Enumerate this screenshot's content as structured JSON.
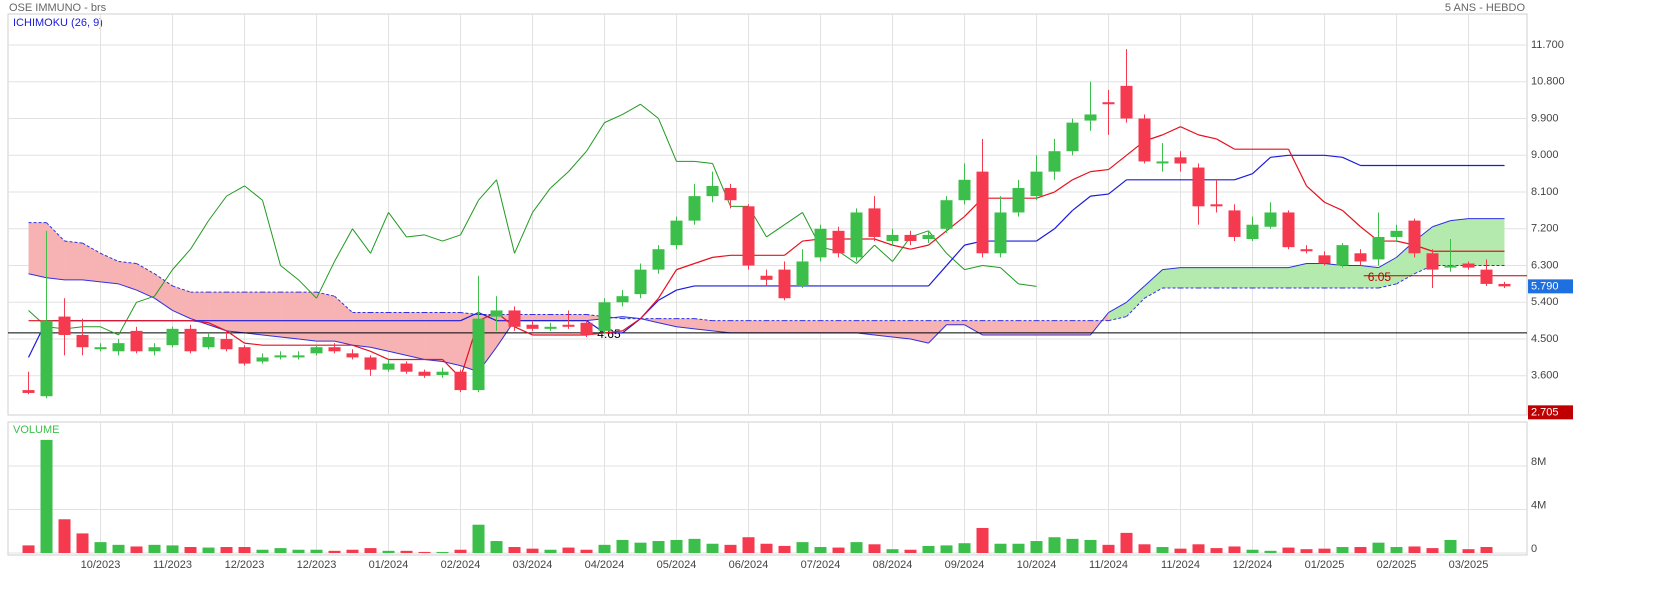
{
  "chart_data": {
    "type": "candlestick",
    "title": "OSE IMMUNO - brs",
    "subtitle": "5 ANS - HEBDO",
    "indicator_label": "ICHIMOKU (26, 9)",
    "displacement": 26,
    "up_color": "#3cbf4a",
    "down_color": "#f5394f",
    "xlim": [
      -1.14,
      83.25
    ],
    "xticks": [
      {
        "value": 4,
        "label": "10/2023"
      },
      {
        "value": 8,
        "label": "11/2023"
      },
      {
        "value": 12,
        "label": "12/2023"
      },
      {
        "value": 16,
        "label": "12/2023"
      },
      {
        "value": 20,
        "label": "01/2024"
      },
      {
        "value": 24,
        "label": "02/2024"
      },
      {
        "value": 28,
        "label": "03/2024"
      },
      {
        "value": 32,
        "label": "04/2024"
      },
      {
        "value": 36,
        "label": "05/2024"
      },
      {
        "value": 40,
        "label": "06/2024"
      },
      {
        "value": 44,
        "label": "07/2024"
      },
      {
        "value": 48,
        "label": "08/2024"
      },
      {
        "value": 52,
        "label": "09/2024"
      },
      {
        "value": 56,
        "label": "10/2024"
      },
      {
        "value": 60,
        "label": "11/2024"
      },
      {
        "value": 64,
        "label": "11/2024"
      },
      {
        "value": 68,
        "label": "12/2024"
      },
      {
        "value": 72,
        "label": "01/2025"
      },
      {
        "value": 76,
        "label": "02/2025"
      },
      {
        "value": 80,
        "label": "03/2025"
      }
    ],
    "ylim": [
      2.64,
      12.46
    ],
    "yticks": [
      {
        "value": 11.7,
        "label": "11.700"
      },
      {
        "value": 10.8,
        "label": "10.800"
      },
      {
        "value": 9.9,
        "label": "9.900"
      },
      {
        "value": 9.0,
        "label": "9.000"
      },
      {
        "value": 8.1,
        "label": "8.100"
      },
      {
        "value": 7.2,
        "label": "7.200"
      },
      {
        "value": 6.3,
        "label": "6.300"
      },
      {
        "value": 5.4,
        "label": "5.400"
      },
      {
        "value": 4.5,
        "label": "4.500"
      },
      {
        "value": 3.6,
        "label": "3.600"
      }
    ],
    "grid": true,
    "open": [
      3.25,
      3.1,
      5.05,
      4.6,
      4.28,
      4.2,
      4.7,
      4.2,
      4.35,
      4.75,
      4.3,
      4.5,
      4.3,
      3.95,
      4.08,
      4.05,
      4.15,
      4.3,
      4.15,
      4.05,
      3.75,
      3.9,
      3.7,
      3.62,
      3.7,
      3.25,
      5.05,
      5.2,
      4.85,
      4.75,
      4.85,
      4.9,
      4.7,
      5.4,
      5.6,
      6.2,
      6.8,
      7.4,
      8.0,
      8.2,
      7.75,
      6.05,
      6.2,
      5.8,
      6.5,
      7.15,
      6.5,
      7.7,
      6.9,
      7.05,
      6.95,
      7.2,
      7.9,
      8.6,
      6.6,
      7.6,
      8.0,
      8.6,
      9.1,
      9.85,
      10.3,
      10.7,
      9.9,
      8.8,
      8.95,
      8.7,
      7.8,
      7.65,
      6.95,
      7.25,
      7.6,
      6.7,
      6.55,
      6.3,
      6.6,
      6.45,
      7.0,
      7.4,
      6.6,
      6.25,
      6.35,
      6.2,
      5.85
    ],
    "high": [
      3.7,
      7.15,
      5.5,
      5.0,
      4.4,
      4.5,
      4.8,
      4.4,
      4.8,
      4.85,
      4.65,
      4.7,
      4.35,
      4.15,
      4.2,
      4.2,
      4.35,
      4.4,
      4.25,
      4.1,
      4.0,
      3.95,
      3.75,
      3.8,
      3.75,
      6.05,
      5.55,
      5.3,
      4.95,
      4.9,
      5.2,
      4.95,
      5.5,
      5.7,
      6.35,
      6.8,
      7.5,
      8.3,
      8.6,
      8.3,
      7.8,
      6.2,
      6.4,
      6.7,
      7.3,
      7.25,
      7.7,
      8.0,
      7.2,
      7.15,
      7.15,
      8.0,
      8.8,
      9.4,
      8.0,
      8.4,
      9.0,
      9.4,
      9.9,
      10.8,
      10.6,
      11.6,
      10.0,
      9.3,
      9.1,
      8.8,
      8.4,
      7.8,
      7.5,
      7.85,
      7.65,
      6.8,
      6.65,
      6.85,
      6.7,
      7.6,
      7.3,
      7.45,
      6.7,
      6.95,
      6.4,
      6.45,
      5.9
    ],
    "low": [
      3.15,
      3.05,
      4.1,
      4.1,
      4.2,
      4.1,
      4.15,
      4.1,
      4.3,
      4.15,
      4.25,
      4.2,
      3.85,
      3.9,
      4.0,
      4.0,
      4.1,
      4.15,
      4.0,
      3.6,
      3.7,
      3.65,
      3.55,
      3.55,
      3.2,
      3.2,
      4.7,
      4.7,
      4.7,
      4.7,
      4.75,
      4.55,
      4.65,
      5.3,
      5.5,
      6.1,
      6.7,
      7.3,
      7.85,
      7.7,
      6.2,
      5.8,
      5.45,
      5.75,
      6.4,
      6.5,
      6.4,
      6.9,
      6.8,
      6.8,
      6.85,
      7.1,
      7.8,
      6.5,
      6.5,
      7.5,
      7.9,
      8.4,
      9.0,
      9.6,
      9.5,
      9.8,
      8.8,
      8.6,
      8.6,
      7.3,
      7.6,
      6.9,
      6.9,
      7.2,
      6.7,
      6.6,
      6.3,
      6.25,
      6.3,
      6.3,
      6.9,
      6.5,
      5.75,
      6.15,
      6.2,
      5.8,
      5.75
    ],
    "close": [
      3.18,
      4.95,
      4.6,
      4.3,
      4.3,
      4.4,
      4.2,
      4.3,
      4.75,
      4.2,
      4.55,
      4.25,
      3.9,
      4.05,
      4.1,
      4.1,
      4.3,
      4.2,
      4.05,
      3.75,
      3.9,
      3.7,
      3.6,
      3.7,
      3.25,
      5.0,
      5.2,
      4.8,
      4.75,
      4.8,
      4.8,
      4.6,
      5.4,
      5.55,
      6.2,
      6.7,
      7.4,
      8.0,
      8.25,
      7.9,
      6.3,
      5.95,
      5.5,
      6.4,
      7.2,
      6.6,
      7.6,
      7.0,
      7.05,
      6.9,
      7.05,
      7.9,
      8.4,
      6.6,
      7.6,
      8.2,
      8.6,
      9.1,
      9.8,
      10.0,
      10.25,
      9.9,
      8.85,
      8.85,
      8.8,
      7.75,
      7.75,
      7.0,
      7.3,
      7.6,
      6.75,
      6.65,
      6.35,
      6.8,
      6.4,
      7.0,
      7.15,
      6.6,
      6.2,
      6.3,
      6.25,
      5.85,
      5.79
    ],
    "tenkan": {
      "color": "#e8101e",
      "values": [
        4.95,
        4.95,
        4.95,
        4.95,
        4.95,
        4.95,
        4.95,
        4.95,
        4.95,
        4.95,
        4.9,
        4.7,
        4.4,
        4.35,
        4.35,
        4.35,
        4.35,
        4.35,
        4.35,
        4.2,
        4.0,
        4.0,
        4.0,
        4.0,
        3.55,
        4.95,
        5.15,
        4.8,
        4.6,
        4.6,
        4.6,
        4.6,
        4.65,
        4.7,
        5.0,
        5.5,
        6.2,
        6.35,
        6.5,
        6.55,
        6.55,
        6.55,
        6.55,
        6.9,
        6.95,
        6.95,
        6.95,
        6.95,
        6.8,
        6.7,
        6.8,
        7.15,
        7.5,
        7.95,
        7.95,
        7.95,
        7.95,
        8.1,
        8.4,
        8.6,
        8.65,
        9.0,
        9.35,
        9.5,
        9.7,
        9.5,
        9.4,
        9.15,
        9.15,
        9.15,
        9.15,
        8.25,
        7.85,
        7.65,
        7.25,
        6.9,
        6.9,
        6.8,
        6.65,
        6.65,
        6.65,
        6.65,
        6.65
      ]
    },
    "kijun": {
      "color": "#1a1adc",
      "values": [
        4.05,
        4.95,
        4.95,
        4.95,
        4.95,
        4.95,
        4.95,
        4.95,
        4.95,
        4.95,
        4.95,
        4.95,
        4.95,
        4.95,
        4.95,
        4.95,
        4.95,
        4.95,
        4.95,
        4.95,
        4.95,
        4.95,
        4.95,
        4.95,
        4.95,
        5.15,
        4.95,
        4.95,
        4.95,
        4.95,
        4.95,
        4.95,
        4.65,
        4.65,
        5.0,
        5.45,
        5.7,
        5.8,
        5.8,
        5.8,
        5.8,
        5.8,
        5.8,
        5.8,
        5.8,
        5.8,
        5.8,
        5.8,
        5.8,
        5.8,
        5.8,
        6.3,
        6.8,
        6.9,
        6.9,
        6.9,
        6.9,
        7.2,
        7.65,
        8.0,
        8.05,
        8.4,
        8.4,
        8.4,
        8.4,
        8.4,
        8.4,
        8.4,
        8.55,
        8.95,
        9.0,
        9.0,
        9.0,
        8.95,
        8.75,
        8.75,
        8.75,
        8.75,
        8.75,
        8.75,
        8.75,
        8.75,
        8.75
      ]
    },
    "chikou": {
      "color": "#1f9a1f"
    },
    "span_a": {
      "color": "#3030e0",
      "values": [
        6.1,
        6.0,
        5.95,
        5.95,
        5.9,
        5.85,
        5.7,
        5.5,
        5.2,
        5.0,
        4.85,
        4.7,
        4.65,
        4.6,
        4.55,
        4.5,
        4.45,
        4.45,
        4.35,
        4.3,
        4.2,
        4.1,
        4.0,
        3.95,
        3.85,
        3.7,
        4.3,
        4.95,
        4.95,
        4.95,
        4.95,
        4.95,
        5.0,
        5.05,
        5.0,
        4.9,
        4.8,
        4.75,
        4.7,
        4.65,
        4.65,
        4.65,
        4.65,
        4.65,
        4.65,
        4.65,
        4.65,
        4.6,
        4.55,
        4.5,
        4.4,
        4.85,
        4.85,
        4.6,
        4.6,
        4.6,
        4.6,
        4.6,
        4.6,
        4.6,
        5.15,
        5.4,
        5.8,
        6.2,
        6.25,
        6.25,
        6.25,
        6.25,
        6.25,
        6.25,
        6.25,
        6.35,
        6.35,
        6.3,
        6.3,
        6.25,
        6.5,
        6.9,
        7.25,
        7.4,
        7.45,
        7.45,
        7.45
      ]
    },
    "span_b": {
      "color": "#3030e0",
      "values": [
        7.35,
        7.35,
        6.9,
        6.85,
        6.6,
        6.4,
        6.35,
        6.1,
        5.8,
        5.65,
        5.65,
        5.65,
        5.65,
        5.65,
        5.65,
        5.65,
        5.65,
        5.55,
        5.15,
        5.15,
        5.15,
        5.15,
        5.15,
        5.15,
        5.15,
        5.1,
        5.1,
        5.1,
        5.1,
        5.1,
        5.1,
        5.1,
        5.05,
        5.0,
        5.0,
        5.0,
        5.0,
        5.0,
        4.95,
        4.95,
        4.95,
        4.95,
        4.95,
        4.95,
        4.95,
        4.95,
        4.95,
        4.95,
        4.95,
        4.95,
        4.95,
        4.95,
        4.95,
        4.95,
        4.95,
        4.95,
        4.95,
        4.95,
        4.95,
        4.95,
        4.95,
        5.05,
        5.5,
        5.75,
        5.75,
        5.75,
        5.75,
        5.75,
        5.75,
        5.75,
        5.75,
        5.75,
        5.75,
        5.75,
        5.75,
        5.75,
        5.85,
        6.1,
        6.3,
        6.3,
        6.3,
        6.3,
        6.3
      ]
    },
    "cloud_up_color": "#b5eaae",
    "cloud_down_color": "#f7b3b3",
    "hlines": [
      {
        "value": 4.65,
        "label": "4.65",
        "color": "#000000"
      },
      {
        "value": 6.05,
        "label": "6.05",
        "color": "#c00000"
      }
    ],
    "price_labels": [
      {
        "value": 5.79,
        "label": "5.790",
        "color": "#1e6fe0"
      },
      {
        "value": 2.705,
        "label": "2.705",
        "color": "#c00000"
      }
    ],
    "volume": {
      "label": "VOLUME",
      "ylim": [
        0,
        11950000
      ],
      "yticks": [
        0,
        {
          "value": 4000000,
          "label": "4M"
        },
        {
          "value": 8000000,
          "label": "8M"
        }
      ],
      "values": [
        700000,
        10400000,
        3100000,
        1800000,
        1000000,
        750000,
        600000,
        750000,
        700000,
        550000,
        500000,
        550000,
        550000,
        300000,
        450000,
        300000,
        300000,
        200000,
        300000,
        450000,
        200000,
        200000,
        100000,
        100000,
        300000,
        2600000,
        1100000,
        550000,
        400000,
        300000,
        500000,
        300000,
        750000,
        1200000,
        950000,
        1100000,
        1200000,
        1300000,
        850000,
        750000,
        1450000,
        850000,
        650000,
        1000000,
        550000,
        500000,
        1000000,
        800000,
        350000,
        300000,
        650000,
        700000,
        900000,
        2300000,
        850000,
        850000,
        1100000,
        1450000,
        1300000,
        1200000,
        750000,
        1850000,
        800000,
        550000,
        400000,
        800000,
        450000,
        600000,
        300000,
        200000,
        500000,
        350000,
        400000,
        550000,
        550000,
        950000,
        550000,
        600000,
        450000,
        1200000,
        350000,
        550000,
        0
      ]
    }
  }
}
